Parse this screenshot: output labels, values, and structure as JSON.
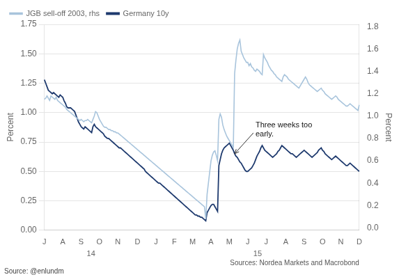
{
  "chart_data": {
    "type": "line",
    "ylabel": "Percent",
    "y2label": "Percent",
    "annotations": [
      "Three weeks too\nearly.",
      "14",
      "15"
    ],
    "sources": [
      "Sources: Nordea Markets and Macrobond",
      "Source: @enlundm"
    ],
    "legend": "upper left",
    "grid": true,
    "ylim": [
      0.0,
      1.75
    ],
    "yticks": [
      {
        "value": 0.0,
        "label": "0.00"
      },
      0.25,
      {
        "value": 0.5,
        "label": "0.50"
      },
      0.75,
      {
        "value": 1.0,
        "label": "1.00"
      },
      1.25,
      {
        "value": 1.5,
        "label": "1.50"
      },
      1.75
    ],
    "y2lim": [
      -0.02,
      1.82
    ],
    "y2ticks": [
      {
        "value": 0.0,
        "label": "0.0"
      },
      0.2,
      0.4,
      0.6,
      0.8,
      {
        "value": 1.0,
        "label": "1.0"
      },
      1.2,
      1.4,
      1.6,
      1.8
    ],
    "categories": [
      "J",
      null,
      null,
      null,
      null,
      null,
      null,
      null,
      null,
      null,
      null,
      null,
      null,
      null,
      "A",
      null,
      null,
      null,
      null,
      null,
      null,
      null,
      null,
      null,
      null,
      null,
      null,
      null,
      "S",
      null,
      null,
      null,
      null,
      null,
      null,
      null,
      null,
      null,
      null,
      null,
      null,
      null,
      "O",
      null,
      null,
      null,
      null,
      null,
      null,
      null,
      null,
      null,
      null,
      null,
      null,
      null,
      "N",
      null,
      null,
      null,
      null,
      null,
      null,
      null,
      null,
      null,
      null,
      null,
      null,
      null,
      null,
      "D",
      null,
      null,
      null,
      null,
      null,
      null,
      null,
      null,
      null,
      null,
      null,
      null,
      null,
      "J",
      null,
      null,
      null,
      null,
      null,
      null,
      null,
      null,
      null,
      null,
      null,
      null,
      null,
      "F",
      null,
      null,
      null,
      null,
      null,
      null,
      null,
      null,
      null,
      null,
      null,
      null,
      null,
      "M",
      null,
      null,
      null,
      null,
      null,
      null,
      null,
      null,
      null,
      null,
      null,
      null,
      null,
      "A",
      null,
      null,
      null,
      null,
      null,
      null,
      null,
      null,
      null,
      null,
      null,
      null,
      null,
      "M",
      null,
      null,
      null,
      null,
      null,
      null,
      null,
      null,
      null,
      null,
      null,
      null,
      null,
      "J",
      null,
      null,
      null,
      null,
      null,
      null,
      null,
      null,
      null,
      null,
      null,
      null,
      null,
      "J",
      null,
      null,
      null,
      null,
      null,
      null,
      null,
      null,
      null,
      null,
      null,
      null,
      null,
      null,
      "A",
      null,
      null,
      null,
      null,
      null,
      null,
      null,
      null,
      null,
      null,
      null,
      null,
      null,
      "S",
      null,
      null,
      null,
      null,
      null,
      null,
      null,
      null,
      null,
      null,
      null,
      null,
      null,
      "O",
      null,
      null,
      null,
      null,
      null,
      null,
      null,
      null,
      null,
      null,
      null,
      null,
      null,
      "N",
      null,
      null,
      null,
      null,
      null,
      null,
      null,
      null,
      null,
      null,
      null,
      null,
      null,
      "D"
    ],
    "series": [
      {
        "name": "JGB sell-off 2003, rhs",
        "color": "#a8c4dc",
        "axis": "y2",
        "values": [
          1.15,
          1.16,
          1.18,
          1.16,
          1.14,
          1.18,
          1.17,
          1.16,
          1.15,
          1.17,
          1.14,
          1.13,
          1.12,
          1.11,
          1.1,
          1.09,
          1.08,
          1.06,
          1.05,
          1.04,
          1.03,
          1.02,
          1.01,
          1.0,
          0.99,
          0.98,
          0.97,
          0.96,
          0.97,
          0.96,
          0.95,
          0.96,
          0.96,
          0.97,
          0.96,
          0.95,
          0.94,
          0.97,
          1.0,
          1.04,
          1.03,
          1.0,
          0.97,
          0.95,
          0.93,
          0.91,
          0.9,
          0.9,
          0.89,
          0.88,
          0.88,
          0.87,
          0.87,
          0.86,
          0.86,
          0.85,
          0.85,
          0.84,
          0.83,
          0.82,
          0.81,
          0.8,
          0.79,
          0.78,
          0.77,
          0.76,
          0.75,
          0.74,
          0.73,
          0.72,
          0.71,
          0.7,
          0.69,
          0.68,
          0.67,
          0.66,
          0.65,
          0.64,
          0.63,
          0.62,
          0.61,
          0.6,
          0.59,
          0.58,
          0.57,
          0.56,
          0.55,
          0.54,
          0.53,
          0.52,
          0.51,
          0.5,
          0.49,
          0.48,
          0.47,
          0.46,
          0.45,
          0.44,
          0.43,
          0.42,
          0.41,
          0.4,
          0.39,
          0.38,
          0.37,
          0.36,
          0.35,
          0.34,
          0.33,
          0.32,
          0.31,
          0.3,
          0.29,
          0.28,
          0.27,
          0.26,
          0.25,
          0.24,
          0.23,
          0.22,
          0.21,
          0.2,
          0.19,
          0.08,
          0.3,
          0.4,
          0.5,
          0.6,
          0.65,
          0.68,
          0.69,
          0.65,
          0.6,
          0.97,
          1.02,
          0.99,
          0.92,
          0.88,
          0.85,
          0.82,
          0.8,
          0.78,
          0.76,
          0.74,
          0.72,
          1.38,
          1.5,
          1.6,
          1.65,
          1.68,
          1.58,
          1.55,
          1.52,
          1.5,
          1.48,
          1.48,
          1.45,
          1.47,
          1.44,
          1.43,
          1.41,
          1.4,
          1.42,
          1.41,
          1.4,
          1.38,
          1.37,
          1.55,
          1.52,
          1.5,
          1.48,
          1.45,
          1.43,
          1.41,
          1.4,
          1.38,
          1.37,
          1.35,
          1.34,
          1.33,
          1.32,
          1.31,
          1.35,
          1.37,
          1.36,
          1.35,
          1.33,
          1.32,
          1.31,
          1.3,
          1.29,
          1.28,
          1.27,
          1.26,
          1.25,
          1.27,
          1.29,
          1.31,
          1.33,
          1.35,
          1.33,
          1.3,
          1.28,
          1.27,
          1.26,
          1.25,
          1.24,
          1.23,
          1.22,
          1.23,
          1.24,
          1.25,
          1.23,
          1.22,
          1.2,
          1.19,
          1.18,
          1.17,
          1.16,
          1.15,
          1.16,
          1.17,
          1.18,
          1.17,
          1.15,
          1.14,
          1.13,
          1.12,
          1.11,
          1.1,
          1.09,
          1.09,
          1.1,
          1.11,
          1.1,
          1.09,
          1.08,
          1.07,
          1.06,
          1.05,
          1.1
        ]
      },
      {
        "name": "Germany 10y",
        "color": "#1e3a6e",
        "axis": "y",
        "values": [
          1.28,
          1.25,
          1.22,
          1.19,
          1.18,
          1.17,
          1.16,
          1.17,
          1.16,
          1.15,
          1.14,
          1.13,
          1.15,
          1.14,
          1.13,
          1.1,
          1.08,
          1.05,
          1.04,
          1.04,
          1.04,
          1.03,
          1.02,
          1.01,
          0.98,
          0.95,
          0.92,
          0.9,
          0.88,
          0.87,
          0.86,
          0.88,
          0.87,
          0.86,
          0.85,
          0.84,
          0.83,
          0.88,
          0.9,
          0.88,
          0.87,
          0.86,
          0.85,
          0.84,
          0.83,
          0.82,
          0.8,
          0.79,
          0.78,
          0.78,
          0.77,
          0.76,
          0.75,
          0.74,
          0.73,
          0.72,
          0.71,
          0.7,
          0.7,
          0.69,
          0.68,
          0.67,
          0.66,
          0.65,
          0.64,
          0.63,
          0.62,
          0.61,
          0.6,
          0.59,
          0.58,
          0.57,
          0.56,
          0.55,
          0.54,
          0.53,
          0.52,
          0.5,
          0.49,
          0.48,
          0.47,
          0.46,
          0.45,
          0.44,
          0.43,
          0.42,
          0.41,
          0.4,
          0.4,
          0.39,
          0.38,
          0.37,
          0.36,
          0.35,
          0.34,
          0.33,
          0.32,
          0.31,
          0.3,
          0.29,
          0.28,
          0.27,
          0.26,
          0.25,
          0.24,
          0.23,
          0.22,
          0.21,
          0.2,
          0.19,
          0.18,
          0.17,
          0.16,
          0.15,
          0.14,
          0.13,
          0.13,
          0.12,
          0.12,
          0.11,
          0.11,
          0.1,
          0.09,
          0.08,
          0.15,
          0.17,
          0.19,
          0.21,
          0.22,
          0.22,
          0.2,
          0.18,
          0.16,
          0.55,
          0.6,
          0.65,
          0.68,
          0.7,
          0.71,
          0.72,
          0.73,
          0.74,
          0.72,
          0.7,
          0.68,
          0.65,
          0.63,
          0.62,
          0.6,
          0.58,
          0.57,
          0.55,
          0.53,
          0.51,
          0.5,
          0.5,
          0.51,
          0.52,
          0.53,
          0.55,
          0.57,
          0.6,
          0.63,
          0.65,
          0.67,
          0.7,
          0.72,
          0.7,
          0.68,
          0.67,
          0.66,
          0.65,
          0.64,
          0.63,
          0.62,
          0.63,
          0.64,
          0.65,
          0.67,
          0.68,
          0.7,
          0.72,
          0.71,
          0.7,
          0.69,
          0.68,
          0.67,
          0.66,
          0.65,
          0.65,
          0.64,
          0.63,
          0.62,
          0.63,
          0.64,
          0.65,
          0.66,
          0.67,
          0.68,
          0.67,
          0.66,
          0.65,
          0.64,
          0.63,
          0.62,
          0.63,
          0.64,
          0.65,
          0.66,
          0.68,
          0.69,
          0.7,
          0.68,
          0.67,
          0.65,
          0.64,
          0.63,
          0.62,
          0.61,
          0.6,
          0.61,
          0.62,
          0.63,
          0.62,
          0.61,
          0.6,
          0.59,
          0.58,
          0.57,
          0.56,
          0.55,
          0.55,
          0.56,
          0.57,
          0.56,
          0.55,
          0.54,
          0.53,
          0.52,
          0.51,
          0.5
        ]
      }
    ]
  }
}
